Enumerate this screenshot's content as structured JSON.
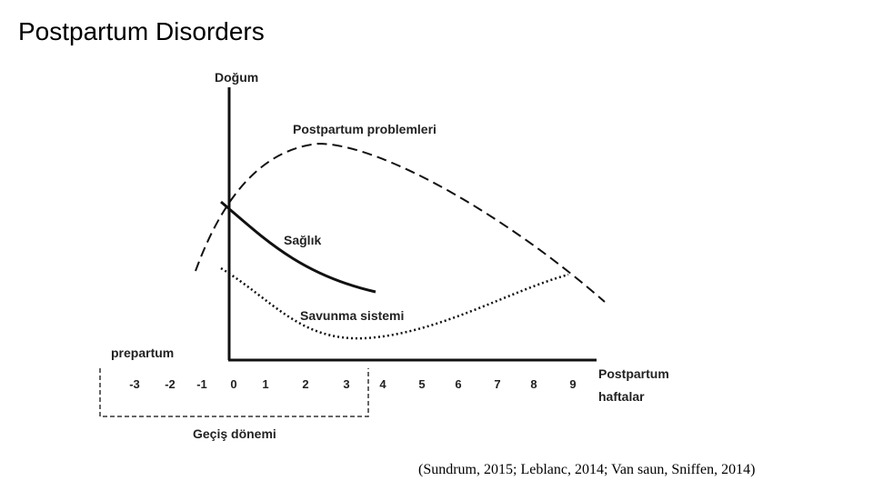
{
  "title": "Postpartum Disorders",
  "diagram": {
    "y_axis_label": "Doğum",
    "curves": [
      {
        "label": "Postpartum problemleri"
      },
      {
        "label": "Sağlık"
      },
      {
        "label": "Savunma sistemi"
      }
    ],
    "prepartum_label": "prepartum",
    "x_ticks": [
      -3,
      -2,
      -1,
      0,
      1,
      2,
      3,
      4,
      5,
      6,
      7,
      8,
      9
    ],
    "x_axis_label": [
      "Postpartum",
      "haftalar"
    ],
    "transition_label": "Geçiş dönemi"
  },
  "citation": "(Sundrum, 2015; Leblanc, 2014; Van saun, Sniffen, 2014)"
}
